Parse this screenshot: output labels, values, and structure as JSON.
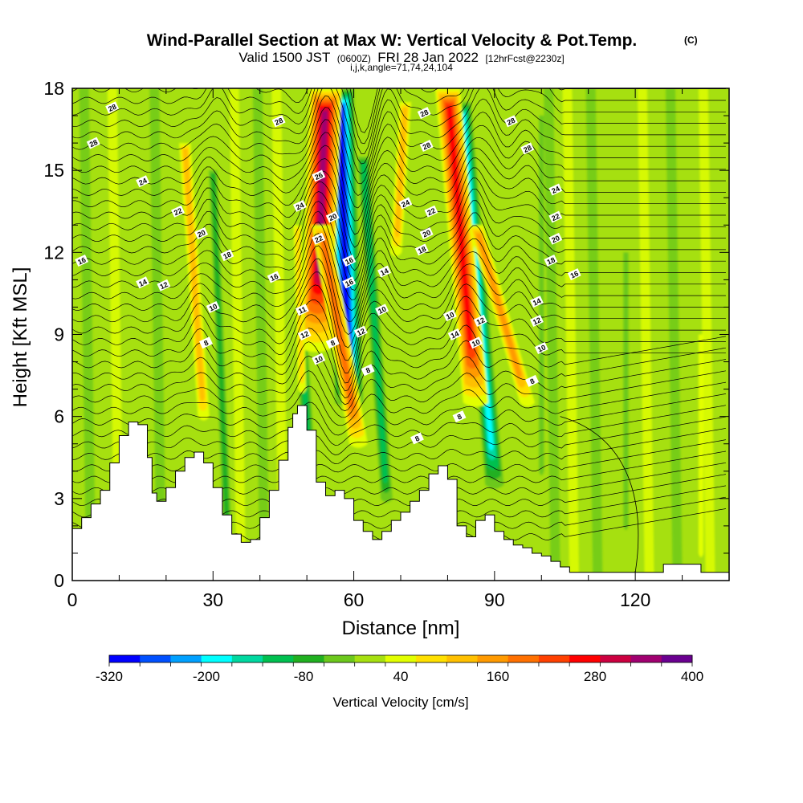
{
  "header": {
    "title": "Wind-Parallel Section at Max W: Vertical Velocity & Pot.Temp.",
    "copyright": "(C)",
    "valid_a": "Valid 1500 JST",
    "valid_z": "(0600Z)",
    "valid_b": "FRI 28 Jan 2022",
    "fcst": "[12hrFcst@2230z]",
    "indices": "i,j,k,angle=71,74,24,104"
  },
  "chart_data": {
    "type": "heatmap",
    "title": "Wind-Parallel Section at Max W: Vertical Velocity & Pot.Temp.",
    "xlabel": "Distance [nm]",
    "ylabel": "Height [Kft MSL]",
    "xlim": [
      0,
      140
    ],
    "ylim": [
      0,
      18
    ],
    "xticks": [
      "0",
      "30",
      "60",
      "90",
      "120"
    ],
    "yticks": [
      "0",
      "3",
      "6",
      "9",
      "12",
      "15",
      "18"
    ],
    "field": "Vertical Velocity",
    "colorbar": {
      "label": "Vertical Velocity [cm/s]",
      "tick_labels": [
        "-320",
        "-200",
        "-80",
        "40",
        "160",
        "280",
        "400"
      ],
      "levels": [
        -320,
        -280,
        -240,
        -200,
        -160,
        -120,
        -80,
        -40,
        0,
        40,
        80,
        120,
        160,
        200,
        240,
        280,
        320,
        360,
        400
      ],
      "colors": [
        "#0000ff",
        "#0050ff",
        "#00a0ff",
        "#00ffff",
        "#00d8a0",
        "#00c050",
        "#20b020",
        "#6cc81c",
        "#a6e010",
        "#e2ff00",
        "#ffe000",
        "#ffc000",
        "#ff9a00",
        "#ff7000",
        "#ff4000",
        "#ff0000",
        "#cc0040",
        "#a00070",
        "#6a0090"
      ]
    },
    "terrain": {
      "x": [
        0,
        2,
        4,
        6,
        8,
        10,
        12,
        14,
        16,
        17,
        18,
        20,
        22,
        24,
        26,
        28,
        30,
        32,
        34,
        36,
        38,
        40,
        42,
        44,
        46,
        47,
        48,
        50,
        52,
        54,
        56,
        58,
        60,
        62,
        64,
        66,
        68,
        70,
        72,
        74,
        76,
        78,
        80,
        82,
        84,
        86,
        88,
        90,
        92,
        94,
        96,
        98,
        100,
        102,
        104,
        106,
        110,
        115,
        120,
        124,
        126,
        130,
        134,
        138,
        140
      ],
      "z": [
        1.9,
        2.3,
        2.8,
        3.3,
        4.3,
        5.3,
        5.8,
        5.7,
        4.5,
        3.2,
        2.9,
        3.4,
        4.0,
        4.5,
        4.7,
        4.3,
        3.4,
        2.4,
        1.7,
        1.4,
        1.5,
        2.3,
        3.3,
        4.4,
        5.6,
        6.1,
        6.4,
        5.5,
        3.6,
        3.1,
        3.3,
        3.0,
        2.2,
        1.8,
        1.5,
        1.8,
        2.2,
        2.5,
        2.9,
        3.3,
        3.9,
        4.2,
        3.7,
        2.0,
        1.6,
        2.2,
        2.4,
        1.8,
        1.5,
        1.3,
        1.2,
        1.0,
        0.9,
        0.7,
        0.5,
        0.3,
        0.3,
        0.3,
        0.3,
        0.3,
        0.6,
        0.6,
        0.3,
        0.3,
        0.3
      ]
    },
    "updraft_bands": [
      {
        "x_base": 52,
        "x_top": 54,
        "z_start": 8.5,
        "z_end": 18,
        "peak_cm_s": 360
      },
      {
        "x_base": 61,
        "x_top": 53,
        "z_start": 5.0,
        "z_end": 13,
        "peak_cm_s": 220
      },
      {
        "x_base": 86,
        "x_top": 80,
        "z_start": 6.5,
        "z_end": 18,
        "peak_cm_s": 300
      },
      {
        "x_base": 97,
        "x_top": 86,
        "z_start": 6.5,
        "z_end": 13,
        "peak_cm_s": 160
      },
      {
        "x_base": 28,
        "x_top": 24,
        "z_start": 6.0,
        "z_end": 16,
        "peak_cm_s": 130
      },
      {
        "x_base": 69,
        "x_top": 71,
        "z_start": 12,
        "z_end": 17.5,
        "peak_cm_s": 140
      },
      {
        "x_base": 49,
        "x_top": 48,
        "z_start": 7.0,
        "z_end": 13,
        "peak_cm_s": 110
      },
      {
        "x_base": 134,
        "x_top": 134,
        "z_start": 1.0,
        "z_end": 9,
        "peak_cm_s": 60
      }
    ],
    "downdraft_bands": [
      {
        "x_base": 59,
        "x_top": 57,
        "z_start": 6.5,
        "z_end": 18,
        "peak_cm_s": -320
      },
      {
        "x_base": 90,
        "x_top": 83,
        "z_start": 3.5,
        "z_end": 17.5,
        "peak_cm_s": -200
      },
      {
        "x_base": 67,
        "x_top": 62,
        "z_start": 3.0,
        "z_end": 15.5,
        "peak_cm_s": -140
      },
      {
        "x_base": 33,
        "x_top": 30,
        "z_start": 2.0,
        "z_end": 15,
        "peak_cm_s": -90
      },
      {
        "x_base": 51,
        "x_top": 49,
        "z_start": 3.0,
        "z_end": 8.5,
        "peak_cm_s": -120
      },
      {
        "x_base": 100,
        "x_top": 100,
        "z_start": 4.0,
        "z_end": 17,
        "peak_cm_s": -70
      },
      {
        "x_base": 118,
        "x_top": 118,
        "z_start": 2.0,
        "z_end": 12,
        "peak_cm_s": -60
      }
    ],
    "contour_field": "Pot.Temp.",
    "contour_labels": [
      {
        "text": "28",
        "x": 8.5,
        "z": 17.3
      },
      {
        "text": "28",
        "x": 44,
        "z": 16.8
      },
      {
        "text": "28",
        "x": 75,
        "z": 17.1
      },
      {
        "text": "28",
        "x": 93.5,
        "z": 16.8
      },
      {
        "text": "28",
        "x": 4.5,
        "z": 16.0
      },
      {
        "text": "28",
        "x": 75.5,
        "z": 15.9
      },
      {
        "text": "28",
        "x": 97,
        "z": 15.8
      },
      {
        "text": "26",
        "x": 52.5,
        "z": 14.8
      },
      {
        "text": "24",
        "x": 15,
        "z": 14.6
      },
      {
        "text": "24",
        "x": 48.5,
        "z": 13.7
      },
      {
        "text": "24",
        "x": 71,
        "z": 13.8
      },
      {
        "text": "24",
        "x": 103,
        "z": 14.3
      },
      {
        "text": "22",
        "x": 22.5,
        "z": 13.5
      },
      {
        "text": "22",
        "x": 76.5,
        "z": 13.5
      },
      {
        "text": "22",
        "x": 103,
        "z": 13.3
      },
      {
        "text": "20",
        "x": 27.5,
        "z": 12.7
      },
      {
        "text": "20",
        "x": 55.5,
        "z": 13.3
      },
      {
        "text": "20",
        "x": 75.5,
        "z": 12.7
      },
      {
        "text": "20",
        "x": 103,
        "z": 12.5
      },
      {
        "text": "22",
        "x": 52.5,
        "z": 12.5
      },
      {
        "text": "18",
        "x": 33,
        "z": 11.9
      },
      {
        "text": "18",
        "x": 74.5,
        "z": 12.1
      },
      {
        "text": "18",
        "x": 102,
        "z": 11.7
      },
      {
        "text": "16",
        "x": 2,
        "z": 11.7
      },
      {
        "text": "16",
        "x": 43,
        "z": 11.1
      },
      {
        "text": "16",
        "x": 59,
        "z": 11.7
      },
      {
        "text": "16",
        "x": 59,
        "z": 10.9
      },
      {
        "text": "16",
        "x": 107,
        "z": 11.2
      },
      {
        "text": "14",
        "x": 15,
        "z": 10.9
      },
      {
        "text": "14",
        "x": 66.5,
        "z": 11.3
      },
      {
        "text": "14",
        "x": 99,
        "z": 10.2
      },
      {
        "text": "12",
        "x": 19.5,
        "z": 10.8
      },
      {
        "text": "12",
        "x": 87,
        "z": 9.5
      },
      {
        "text": "12",
        "x": 99,
        "z": 9.5
      },
      {
        "text": "12",
        "x": 49.5,
        "z": 9.0
      },
      {
        "text": "12",
        "x": 61.5,
        "z": 9.1
      },
      {
        "text": "11",
        "x": 49,
        "z": 9.9
      },
      {
        "text": "10",
        "x": 30,
        "z": 10.0
      },
      {
        "text": "10",
        "x": 66,
        "z": 9.9
      },
      {
        "text": "10",
        "x": 80.5,
        "z": 9.7
      },
      {
        "text": "10",
        "x": 52.5,
        "z": 8.1
      },
      {
        "text": "10",
        "x": 86,
        "z": 8.7
      },
      {
        "text": "10",
        "x": 100,
        "z": 8.5
      },
      {
        "text": "14",
        "x": 81.5,
        "z": 9.0
      },
      {
        "text": "8",
        "x": 28.5,
        "z": 8.7
      },
      {
        "text": "8",
        "x": 55.5,
        "z": 8.7
      },
      {
        "text": "8",
        "x": 63,
        "z": 7.7
      },
      {
        "text": "8",
        "x": 98,
        "z": 7.3
      },
      {
        "text": "8",
        "x": 82.5,
        "z": 6.0
      },
      {
        "text": "8",
        "x": 73.5,
        "z": 5.2
      }
    ]
  }
}
